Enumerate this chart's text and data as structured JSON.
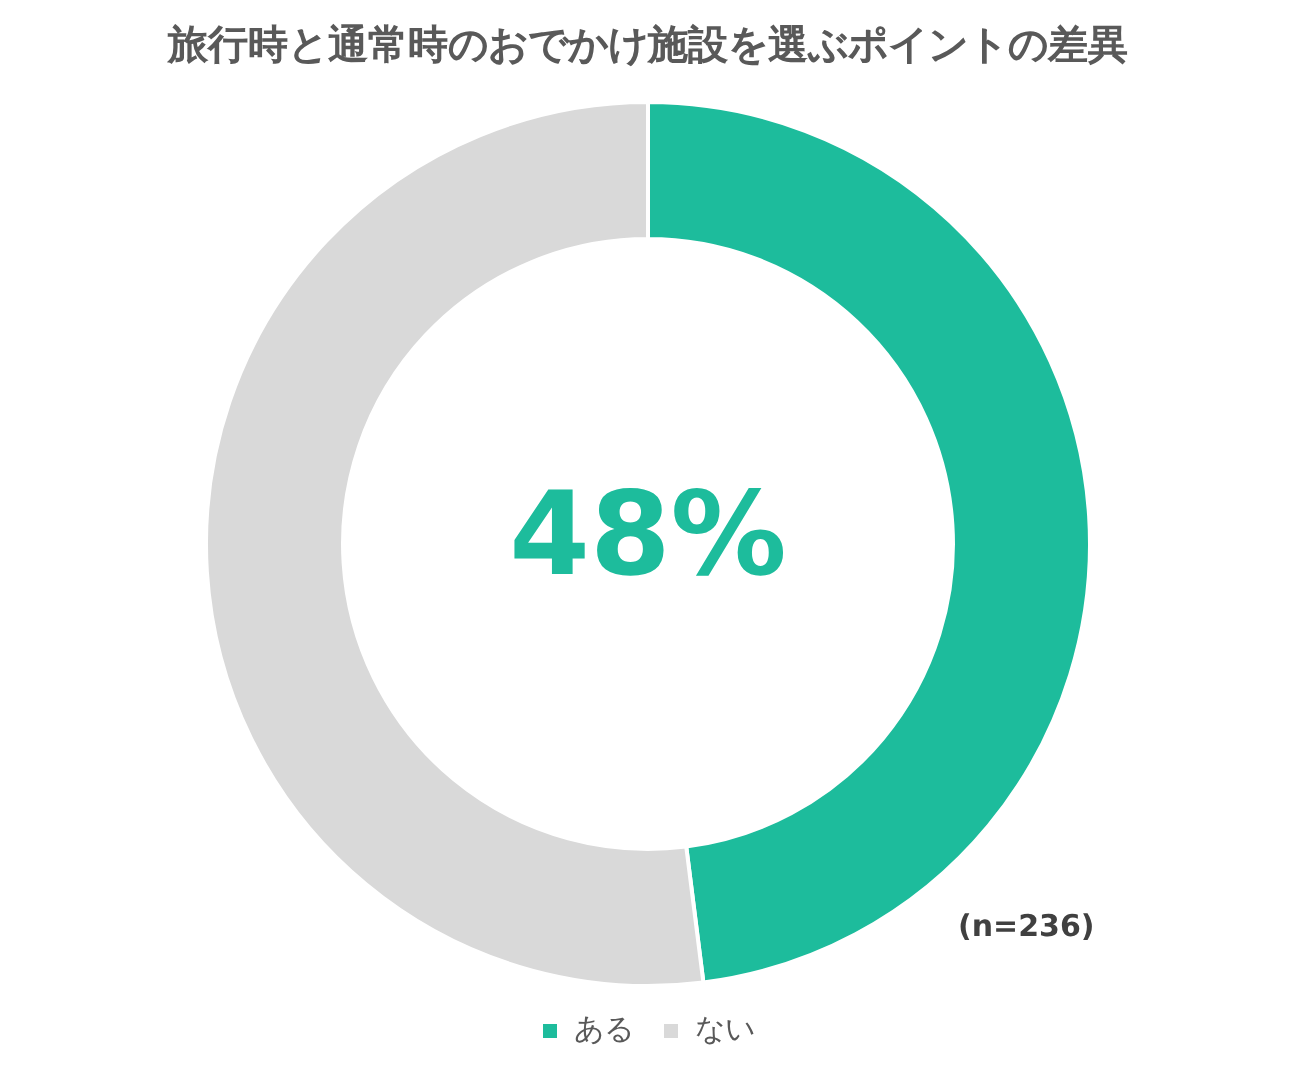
{
  "chart_data": {
    "type": "donut",
    "title": "旅行時と通常時のおでかけ施設を選ぶポイントの差異",
    "categories": [
      "ある",
      "ない"
    ],
    "values": [
      48,
      52
    ],
    "colors": [
      "#1dbc9c",
      "#d9d9d9"
    ],
    "legend": "bottom",
    "annotations": [
      "48%",
      "(n=236)"
    ]
  }
}
